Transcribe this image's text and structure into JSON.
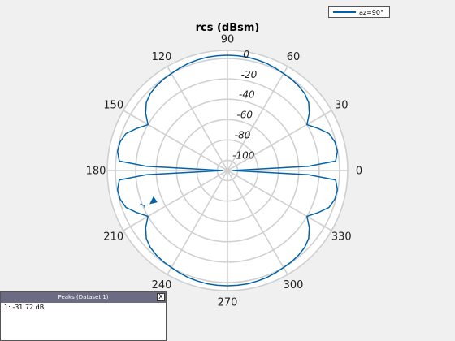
{
  "chart_data": {
    "type": "polar-line",
    "title": "rcs (dBsm)",
    "angle_ticks": [
      "0",
      "30",
      "60",
      "90",
      "120",
      "150",
      "180",
      "210",
      "240",
      "270",
      "300",
      "330"
    ],
    "angle_tick_values_deg": [
      0,
      30,
      60,
      90,
      120,
      150,
      180,
      210,
      240,
      270,
      300,
      330
    ],
    "radial_ticks": [
      "0",
      "-20",
      "-40",
      "-60",
      "-80",
      "-100"
    ],
    "radial_tick_values": [
      0,
      -20,
      -40,
      -60,
      -80,
      -100
    ],
    "r_range": [
      -110,
      8
    ],
    "grid": true,
    "legend_position": "top-right",
    "series": [
      {
        "name": "az=90°",
        "color": "#0062a8",
        "angle_deg": [
          0,
          2,
          3,
          5,
          10,
          15,
          20,
          25,
          30,
          35,
          40,
          45,
          50,
          55,
          60,
          65,
          70,
          75,
          80,
          85,
          90,
          95,
          100,
          105,
          110,
          115,
          120,
          125,
          130,
          135,
          140,
          145,
          150,
          155,
          160,
          165,
          170,
          175,
          177,
          178,
          180,
          182,
          183,
          185,
          190,
          195,
          200,
          205,
          210,
          215,
          220,
          225,
          230,
          235,
          240,
          245,
          250,
          255,
          260,
          265,
          270,
          275,
          280,
          285,
          290,
          295,
          300,
          305,
          310,
          315,
          320,
          325,
          330,
          335,
          340,
          345,
          350,
          355,
          357,
          358,
          360
        ],
        "r": [
          -105,
          -100,
          -30,
          -3.5,
          -0.5,
          -1,
          -4,
          -12,
          -20,
          -12,
          -6,
          -3,
          -1.5,
          -0.5,
          0,
          1,
          2,
          2.5,
          3,
          3.2,
          3.2,
          3.2,
          3,
          2.5,
          2,
          1,
          0,
          -0.5,
          -1.5,
          -3,
          -6,
          -12,
          -20,
          -12,
          -4,
          -1,
          -0.5,
          -3.5,
          -30,
          -100,
          -105,
          -100,
          -30,
          -3.5,
          -0.5,
          -1,
          -4,
          -12,
          -20,
          -12,
          -6,
          -3,
          -1.5,
          -0.5,
          0,
          1,
          2,
          2.5,
          3,
          3.2,
          3.2,
          3.2,
          3,
          2.5,
          2,
          1,
          0,
          -0.5,
          -1.5,
          -3,
          -6,
          -12,
          -20,
          -12,
          -4,
          -1,
          -0.5,
          -3.5,
          -30,
          -100,
          -105
        ]
      }
    ],
    "marker": {
      "label": "1",
      "angle_deg": 202,
      "r": -31.72
    }
  },
  "legend": {
    "label": "az=90°"
  },
  "peaks": {
    "title": "Peaks (Dataset 1)",
    "close_label": "X",
    "entry": "1: -31.72 dB"
  }
}
